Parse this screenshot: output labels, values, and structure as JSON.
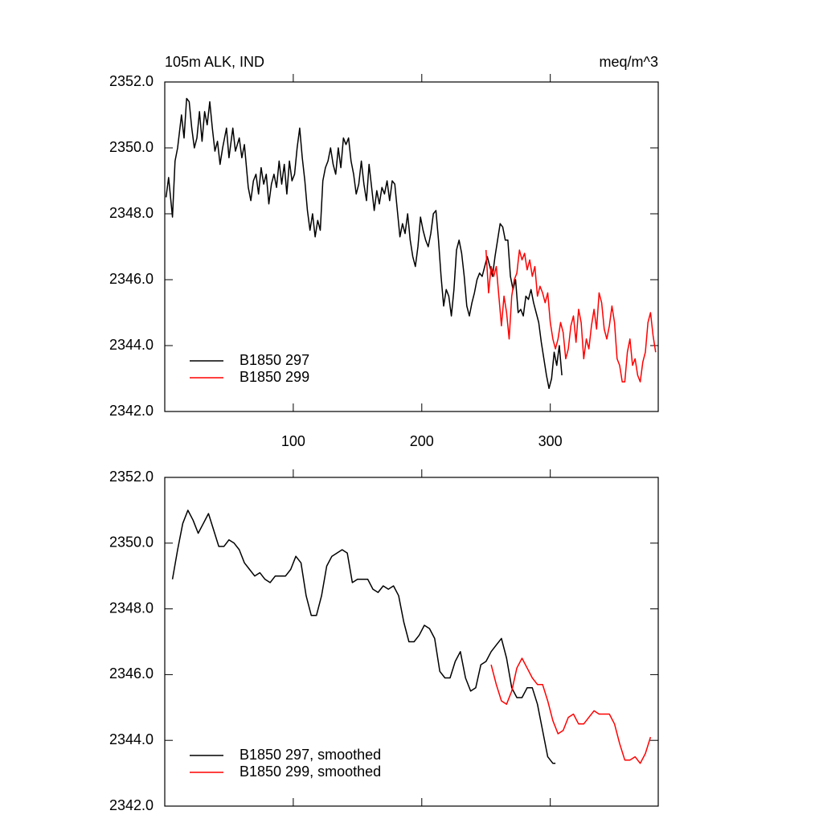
{
  "chart_data": [
    {
      "type": "line",
      "title": "105m ALK, IND",
      "title_right": "meq/m^3",
      "xlim": [
        0,
        384
      ],
      "xticks": [
        100,
        200,
        300
      ],
      "show_xtick_labels": true,
      "ylim": [
        2342,
        2352
      ],
      "yticks": [
        {
          "value": 2342,
          "label": "2342.0"
        },
        {
          "value": 2344,
          "label": "2344.0"
        },
        {
          "value": 2346,
          "label": "2346.0"
        },
        {
          "value": 2348,
          "label": "2348.0"
        },
        {
          "value": 2350,
          "label": "2350.0"
        },
        {
          "value": 2352,
          "label": "2352.0"
        }
      ],
      "legend": "lower left",
      "series": [
        {
          "name": "B1850 297",
          "color": "#000000",
          "x": [
            1,
            3,
            6,
            8,
            10,
            13,
            15,
            17,
            19,
            21,
            23,
            25,
            27,
            29,
            31,
            33,
            35,
            37,
            39,
            41,
            43,
            45,
            48,
            50,
            53,
            55,
            58,
            60,
            62,
            65,
            67,
            69,
            71,
            73,
            75,
            77,
            79,
            81,
            83,
            85,
            87,
            89,
            91,
            93,
            95,
            97,
            99,
            101,
            103,
            105,
            107,
            109,
            111,
            113,
            115,
            117,
            119,
            121,
            123,
            125,
            127,
            129,
            131,
            133,
            135,
            137,
            139,
            141,
            143,
            145,
            147,
            149,
            151,
            153,
            155,
            157,
            159,
            161,
            163,
            165,
            167,
            169,
            171,
            173,
            175,
            177,
            179,
            181,
            183,
            185,
            187,
            189,
            191,
            193,
            195,
            197,
            199,
            201,
            203,
            205,
            207,
            209,
            211,
            213,
            215,
            217,
            219,
            221,
            223,
            225,
            227,
            229,
            231,
            233,
            235,
            237,
            239,
            241,
            243,
            245,
            247,
            249,
            251,
            253,
            255,
            257,
            259,
            261,
            263,
            265,
            267,
            269,
            271,
            273,
            275,
            277,
            279,
            281,
            283,
            285,
            287,
            289,
            291,
            293,
            295,
            297,
            299,
            301,
            303,
            305,
            307,
            309
          ],
          "values": [
            2348.5,
            2349.1,
            2347.9,
            2349.6,
            2350.0,
            2351.0,
            2350.3,
            2351.5,
            2351.4,
            2350.6,
            2350.0,
            2350.3,
            2351.1,
            2350.2,
            2351.1,
            2350.7,
            2351.4,
            2350.6,
            2349.9,
            2350.2,
            2349.5,
            2350.0,
            2350.6,
            2349.7,
            2350.6,
            2349.9,
            2350.3,
            2349.7,
            2350.1,
            2348.8,
            2348.4,
            2349.0,
            2349.2,
            2348.6,
            2349.4,
            2348.9,
            2349.2,
            2348.3,
            2348.9,
            2349.2,
            2348.8,
            2349.6,
            2348.9,
            2349.5,
            2348.6,
            2349.6,
            2349.0,
            2349.2,
            2350.0,
            2350.6,
            2349.7,
            2349.0,
            2348.1,
            2347.5,
            2348.0,
            2347.3,
            2347.8,
            2347.5,
            2349.0,
            2349.4,
            2349.6,
            2350.0,
            2349.5,
            2349.2,
            2350.0,
            2349.4,
            2350.3,
            2350.1,
            2350.3,
            2349.6,
            2349.2,
            2348.6,
            2348.9,
            2349.6,
            2348.9,
            2348.4,
            2349.5,
            2348.8,
            2348.1,
            2348.7,
            2348.3,
            2348.8,
            2348.6,
            2349.0,
            2348.4,
            2349.0,
            2348.9,
            2348.1,
            2347.3,
            2347.7,
            2347.4,
            2348.0,
            2347.2,
            2346.7,
            2346.4,
            2347.0,
            2347.9,
            2347.5,
            2347.2,
            2347.0,
            2347.4,
            2348.0,
            2348.1,
            2347.2,
            2346.1,
            2345.2,
            2345.7,
            2345.5,
            2344.9,
            2345.7,
            2346.9,
            2347.2,
            2346.8,
            2346.1,
            2345.2,
            2344.9,
            2345.3,
            2345.6,
            2346.0,
            2346.2,
            2346.1,
            2346.4,
            2346.7,
            2346.4,
            2346.1,
            2346.7,
            2347.2,
            2347.7,
            2347.6,
            2347.2,
            2347.2,
            2346.1,
            2345.7,
            2346.0,
            2345.0,
            2345.1,
            2344.9,
            2345.5,
            2345.4,
            2345.7,
            2345.3,
            2345.0,
            2344.7,
            2344.1,
            2343.6,
            2343.1,
            2342.7,
            2343.0,
            2343.8,
            2343.4,
            2344.0,
            2343.1
          ]
        },
        {
          "name": "B1850 299",
          "color": "#ff0000",
          "x": [
            250,
            252,
            254,
            256,
            258,
            260,
            262,
            264,
            266,
            268,
            270,
            272,
            274,
            276,
            278,
            280,
            282,
            284,
            286,
            288,
            290,
            292,
            294,
            296,
            298,
            300,
            302,
            304,
            306,
            308,
            310,
            312,
            314,
            316,
            318,
            320,
            322,
            324,
            326,
            328,
            330,
            332,
            334,
            336,
            338,
            340,
            342,
            344,
            346,
            348,
            350,
            352,
            354,
            356,
            358,
            360,
            362,
            364,
            366,
            368,
            370,
            372,
            374,
            376,
            378,
            380,
            382
          ],
          "values": [
            2346.9,
            2345.6,
            2346.4,
            2346.1,
            2346.4,
            2345.5,
            2344.6,
            2345.5,
            2345.0,
            2344.2,
            2345.5,
            2346.0,
            2346.2,
            2346.9,
            2346.6,
            2346.8,
            2346.3,
            2346.6,
            2346.1,
            2346.4,
            2345.5,
            2345.8,
            2345.6,
            2345.3,
            2345.6,
            2344.7,
            2344.2,
            2343.9,
            2344.2,
            2344.7,
            2344.4,
            2343.6,
            2343.9,
            2344.6,
            2344.9,
            2344.1,
            2345.1,
            2344.7,
            2343.6,
            2344.2,
            2343.9,
            2344.6,
            2345.1,
            2344.5,
            2345.6,
            2345.3,
            2344.5,
            2344.2,
            2344.6,
            2345.2,
            2344.7,
            2343.6,
            2343.4,
            2342.9,
            2342.9,
            2343.8,
            2344.2,
            2343.4,
            2343.6,
            2343.1,
            2342.9,
            2343.5,
            2343.8,
            2344.7,
            2345.0,
            2344.3,
            2343.8
          ]
        }
      ]
    },
    {
      "type": "line",
      "xlim": [
        0,
        384
      ],
      "xticks": [
        100,
        200,
        300
      ],
      "show_xtick_labels": false,
      "ylim": [
        2342,
        2352
      ],
      "yticks": [
        {
          "value": 2342,
          "label": "2342.0"
        },
        {
          "value": 2344,
          "label": "2344.0"
        },
        {
          "value": 2346,
          "label": "2346.0"
        },
        {
          "value": 2348,
          "label": "2348.0"
        },
        {
          "value": 2350,
          "label": "2350.0"
        },
        {
          "value": 2352,
          "label": "2352.0"
        }
      ],
      "legend": "lower left",
      "series": [
        {
          "name": "B1850 297, smoothed",
          "color": "#000000",
          "x": [
            6,
            10,
            14,
            18,
            22,
            26,
            30,
            34,
            38,
            42,
            46,
            50,
            54,
            58,
            62,
            66,
            70,
            74,
            78,
            82,
            86,
            90,
            94,
            98,
            102,
            106,
            110,
            114,
            118,
            122,
            126,
            130,
            134,
            138,
            142,
            146,
            150,
            154,
            158,
            162,
            166,
            170,
            174,
            178,
            182,
            186,
            190,
            194,
            198,
            202,
            206,
            210,
            214,
            218,
            222,
            226,
            230,
            234,
            238,
            242,
            246,
            250,
            254,
            258,
            262,
            266,
            270,
            274,
            278,
            282,
            286,
            290,
            294,
            298,
            302,
            304
          ],
          "values": [
            2348.9,
            2349.8,
            2350.6,
            2351.0,
            2350.7,
            2350.3,
            2350.6,
            2350.9,
            2350.4,
            2349.9,
            2349.9,
            2350.1,
            2350.0,
            2349.8,
            2349.4,
            2349.2,
            2349.0,
            2349.1,
            2348.9,
            2348.8,
            2349.0,
            2349.0,
            2349.0,
            2349.2,
            2349.6,
            2349.4,
            2348.4,
            2347.8,
            2347.8,
            2348.4,
            2349.3,
            2349.6,
            2349.7,
            2349.8,
            2349.7,
            2348.8,
            2348.9,
            2348.9,
            2348.9,
            2348.6,
            2348.5,
            2348.7,
            2348.6,
            2348.7,
            2348.4,
            2347.6,
            2347.0,
            2347.0,
            2347.2,
            2347.5,
            2347.4,
            2347.1,
            2346.1,
            2345.9,
            2345.9,
            2346.4,
            2346.7,
            2345.9,
            2345.5,
            2345.6,
            2346.3,
            2346.4,
            2346.7,
            2346.9,
            2347.1,
            2346.5,
            2345.6,
            2345.3,
            2345.3,
            2345.6,
            2345.6,
            2345.1,
            2344.3,
            2343.5,
            2343.3,
            2343.3
          ]
        },
        {
          "name": "B1850 299, smoothed",
          "color": "#ff0000",
          "x": [
            254,
            258,
            262,
            266,
            270,
            274,
            278,
            282,
            286,
            290,
            294,
            298,
            302,
            306,
            310,
            314,
            318,
            322,
            326,
            330,
            334,
            338,
            342,
            346,
            350,
            354,
            358,
            362,
            366,
            370,
            374,
            378
          ],
          "values": [
            2346.3,
            2345.7,
            2345.2,
            2345.1,
            2345.5,
            2346.2,
            2346.5,
            2346.2,
            2345.9,
            2345.7,
            2345.7,
            2345.2,
            2344.6,
            2344.2,
            2344.3,
            2344.7,
            2344.8,
            2344.5,
            2344.5,
            2344.7,
            2344.9,
            2344.8,
            2344.8,
            2344.8,
            2344.5,
            2343.9,
            2343.4,
            2343.4,
            2343.5,
            2343.3,
            2343.6,
            2344.1
          ]
        }
      ]
    }
  ]
}
